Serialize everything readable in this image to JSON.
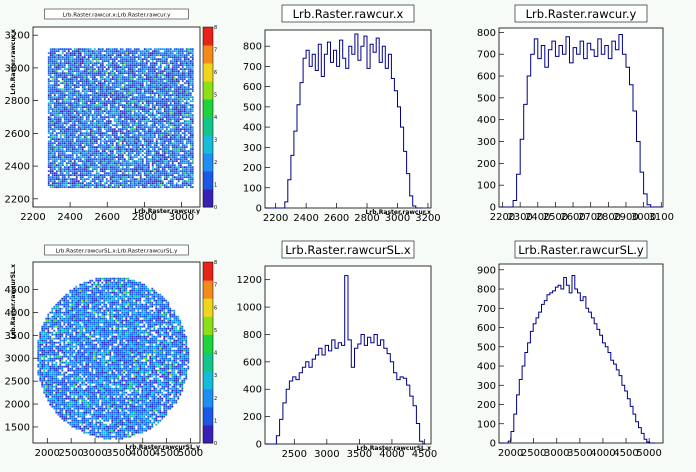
{
  "chart_data": [
    {
      "type": "heatmap",
      "title": "Lrb.Raster.rawcur.x:Lrb.Raster.rawcur.y",
      "xlabel": "Lrb.Raster.rawcur.y",
      "ylabel": "Lrb.Raster.rawcur.x",
      "shape": "square",
      "xlim": [
        2200,
        3100
      ],
      "ylim": [
        2150,
        3250
      ],
      "xticks": [
        2200,
        2400,
        2600,
        2800,
        3000
      ],
      "yticks": [
        2200,
        2400,
        2600,
        2800,
        3000,
        3200
      ],
      "data_extent": {
        "x": [
          2280,
          3060
        ],
        "y": [
          2270,
          3120
        ]
      },
      "zlim": [
        0,
        8
      ],
      "zticks": [
        0,
        1,
        2,
        3,
        4,
        5,
        6,
        7,
        8
      ]
    },
    {
      "type": "line",
      "title": "Lrb.Raster.rawcur.x",
      "xlabel": "Lrb.Raster.rawcur.x",
      "xlim": [
        2130,
        3220
      ],
      "ylim": [
        0,
        880
      ],
      "xticks": [
        2200,
        2400,
        2600,
        2800,
        3000,
        3200
      ],
      "yticks": [
        0,
        100,
        200,
        300,
        400,
        500,
        600,
        700,
        800
      ],
      "x": [
        2150,
        2170,
        2190,
        2210,
        2230,
        2250,
        2270,
        2290,
        2310,
        2330,
        2350,
        2370,
        2390,
        2410,
        2430,
        2450,
        2470,
        2490,
        2510,
        2530,
        2550,
        2570,
        2590,
        2610,
        2630,
        2650,
        2670,
        2690,
        2710,
        2730,
        2750,
        2770,
        2790,
        2810,
        2830,
        2850,
        2870,
        2890,
        2910,
        2930,
        2950,
        2970,
        2990,
        3010,
        3030,
        3050,
        3070,
        3090,
        3110,
        3130,
        3150
      ],
      "values": [
        0,
        0,
        0,
        0,
        0,
        0,
        30,
        140,
        260,
        380,
        510,
        620,
        740,
        780,
        700,
        760,
        680,
        810,
        650,
        760,
        820,
        720,
        780,
        700,
        830,
        740,
        690,
        800,
        760,
        860,
        730,
        800,
        850,
        690,
        810,
        770,
        840,
        720,
        800,
        690,
        760,
        640,
        580,
        500,
        400,
        280,
        170,
        60,
        10,
        0,
        0
      ]
    },
    {
      "type": "line",
      "title": "Lrb.Raster.rawcur.y",
      "xlim": [
        2180,
        3110
      ],
      "ylim": [
        0,
        820
      ],
      "xticks": [
        2200,
        2300,
        2400,
        2500,
        2600,
        2700,
        2800,
        2900,
        3000,
        3100
      ],
      "yticks": [
        0,
        100,
        200,
        300,
        400,
        500,
        600,
        700,
        800
      ],
      "x": [
        2190,
        2210,
        2230,
        2250,
        2270,
        2290,
        2310,
        2330,
        2350,
        2370,
        2390,
        2410,
        2430,
        2450,
        2470,
        2490,
        2510,
        2530,
        2550,
        2570,
        2590,
        2610,
        2630,
        2650,
        2670,
        2690,
        2710,
        2730,
        2750,
        2770,
        2790,
        2810,
        2830,
        2850,
        2870,
        2890,
        2910,
        2930,
        2950,
        2970,
        2990,
        3010,
        3030,
        3050,
        3070,
        3090
      ],
      "values": [
        0,
        0,
        0,
        0,
        30,
        150,
        310,
        470,
        600,
        700,
        770,
        680,
        740,
        640,
        720,
        760,
        690,
        740,
        700,
        780,
        660,
        730,
        700,
        760,
        680,
        750,
        720,
        690,
        770,
        700,
        740,
        680,
        760,
        720,
        790,
        700,
        640,
        560,
        440,
        300,
        160,
        60,
        10,
        0,
        0,
        0
      ]
    },
    {
      "type": "heatmap",
      "title": "Lrb.Raster.rawcurSL.x:Lrb.Raster.rawcurSL.y",
      "xlabel": "Lrb.Raster.rawcurSL.y",
      "ylabel": "Lrb.Raster.rawcurSL.x",
      "shape": "circle",
      "xlim": [
        1700,
        5200
      ],
      "ylim": [
        1150,
        5100
      ],
      "xticks": [
        2000,
        2500,
        3000,
        3500,
        4000,
        4500,
        5000
      ],
      "yticks": [
        1500,
        2000,
        2500,
        3000,
        3500,
        4000,
        4500
      ],
      "data_extent": {
        "x": [
          1750,
          4950
        ],
        "y": [
          1250,
          4800
        ]
      },
      "zlim": [
        0,
        8
      ],
      "zticks": [
        0,
        1,
        2,
        3,
        4,
        5,
        6,
        7,
        8
      ]
    },
    {
      "type": "line",
      "title": "Lrb.Raster.rawcurSL.x",
      "xlabel": "Lrb.Raster.rawcurSL.x",
      "xlim": [
        2050,
        4600
      ],
      "ylim": [
        0,
        1300
      ],
      "xticks": [
        2500,
        3000,
        3500,
        4000,
        4500
      ],
      "yticks": [
        0,
        200,
        400,
        600,
        800,
        1000,
        1200
      ],
      "x": [
        2100,
        2150,
        2200,
        2250,
        2300,
        2350,
        2400,
        2450,
        2500,
        2550,
        2600,
        2650,
        2700,
        2750,
        2800,
        2850,
        2900,
        2950,
        3000,
        3050,
        3100,
        3150,
        3200,
        3250,
        3300,
        3350,
        3400,
        3450,
        3500,
        3550,
        3600,
        3650,
        3700,
        3750,
        3800,
        3850,
        3900,
        3950,
        4000,
        4050,
        4100,
        4150,
        4200,
        4250,
        4300,
        4350,
        4400,
        4450,
        4500
      ],
      "values": [
        0,
        0,
        0,
        60,
        180,
        300,
        400,
        460,
        490,
        470,
        520,
        560,
        600,
        560,
        620,
        650,
        700,
        650,
        720,
        680,
        760,
        700,
        740,
        720,
        1230,
        760,
        560,
        700,
        730,
        800,
        720,
        780,
        740,
        800,
        720,
        760,
        700,
        660,
        600,
        520,
        470,
        490,
        480,
        430,
        350,
        280,
        150,
        20,
        0
      ]
    },
    {
      "type": "line",
      "title": "Lrb.Raster.rawcurSL.y",
      "xlim": [
        1750,
        5300
      ],
      "ylim": [
        0,
        930
      ],
      "xticks": [
        2000,
        2500,
        3000,
        3500,
        4000,
        4500,
        5000
      ],
      "yticks": [
        0,
        100,
        200,
        300,
        400,
        500,
        600,
        700,
        800,
        900
      ],
      "x": [
        1800,
        1860,
        1920,
        1980,
        2040,
        2100,
        2160,
        2220,
        2280,
        2340,
        2400,
        2460,
        2520,
        2580,
        2640,
        2700,
        2760,
        2820,
        2880,
        2940,
        3000,
        3060,
        3120,
        3180,
        3240,
        3300,
        3360,
        3420,
        3480,
        3540,
        3600,
        3660,
        3720,
        3780,
        3840,
        3900,
        3960,
        4020,
        4080,
        4140,
        4200,
        4260,
        4320,
        4380,
        4440,
        4500,
        4560,
        4620,
        4680,
        4740,
        4800,
        4860,
        4920,
        4980,
        5040,
        5100
      ],
      "values": [
        0,
        0,
        0,
        10,
        60,
        150,
        250,
        330,
        400,
        470,
        520,
        580,
        620,
        650,
        680,
        720,
        740,
        770,
        780,
        790,
        810,
        820,
        800,
        860,
        820,
        780,
        870,
        800,
        780,
        740,
        760,
        700,
        680,
        650,
        620,
        590,
        560,
        520,
        500,
        470,
        430,
        410,
        380,
        350,
        300,
        270,
        230,
        190,
        150,
        110,
        80,
        50,
        20,
        5,
        0,
        0
      ]
    }
  ]
}
